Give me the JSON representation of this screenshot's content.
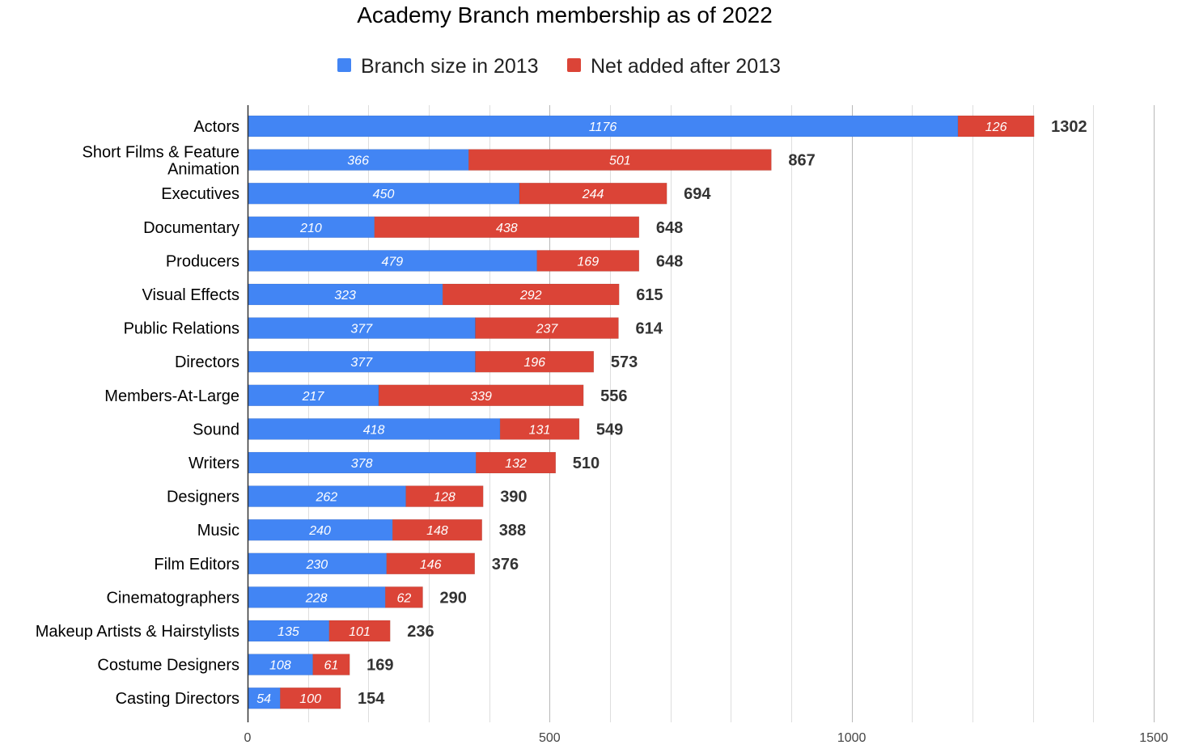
{
  "chart_data": {
    "type": "bar",
    "orientation": "horizontal",
    "stacked": true,
    "title": "Academy Branch membership as of 2022",
    "legend_position": "top",
    "categories": [
      "Actors",
      "Short Films & Feature Animation",
      "Executives",
      "Documentary",
      "Producers",
      "Visual Effects",
      "Public Relations",
      "Directors",
      "Members-At-Large",
      "Sound",
      "Writers",
      "Designers",
      "Music",
      "Film Editors",
      "Cinematographers",
      "Makeup Artists & Hairstylists",
      "Costume Designers",
      "Casting Directors"
    ],
    "series": [
      {
        "name": "Branch size in 2013",
        "color": "#4285f4",
        "values": [
          1176,
          366,
          450,
          210,
          479,
          323,
          377,
          377,
          217,
          418,
          378,
          262,
          240,
          230,
          228,
          135,
          108,
          54
        ]
      },
      {
        "name": "Net added after 2013",
        "color": "#db4437",
        "values": [
          126,
          501,
          244,
          438,
          169,
          292,
          237,
          196,
          339,
          131,
          132,
          128,
          148,
          146,
          62,
          101,
          61,
          100
        ]
      }
    ],
    "totals": [
      1302,
      867,
      694,
      648,
      648,
      615,
      614,
      573,
      556,
      549,
      510,
      390,
      388,
      376,
      290,
      236,
      169,
      154
    ],
    "xlim": [
      0,
      1500
    ],
    "xticks": [
      "0",
      "500",
      "1000",
      "1500"
    ],
    "minor_gridlines": true,
    "grid": true
  }
}
